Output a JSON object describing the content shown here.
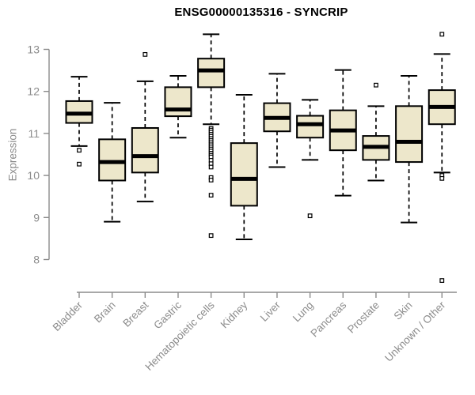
{
  "title": "ENSG00000135316 - SYNCRIP",
  "colors": {
    "box_fill": "#EDE7CB",
    "box_stroke": "#000000",
    "median": "#000000",
    "whisker": "#000000",
    "axis": "#8B8B8B",
    "tick_text": "#8C8C8C",
    "title_text": "#000000",
    "background": "#FFFFFF"
  },
  "chart_data": {
    "type": "boxplot",
    "title": "ENSG00000135316 - SYNCRIP",
    "xlabel": "",
    "ylabel": "Expression",
    "ylim": [
      8,
      13
    ],
    "yticks": [
      8,
      9,
      10,
      11,
      12,
      13
    ],
    "grid": false,
    "legend": false,
    "categories": [
      "Bladder",
      "Brain",
      "Breast",
      "Gastric",
      "Hematopoietic cells",
      "Kidney",
      "Liver",
      "Lung",
      "Pancreas",
      "Prostate",
      "Skin",
      "Unknown / Other"
    ],
    "series": [
      {
        "name": "Bladder",
        "whisker_low": 10.7,
        "q1": 11.25,
        "median": 11.47,
        "q3": 11.77,
        "whisker_high": 12.35,
        "outliers": [
          10.6,
          10.27
        ]
      },
      {
        "name": "Brain",
        "whisker_low": 8.9,
        "q1": 9.88,
        "median": 10.32,
        "q3": 10.86,
        "whisker_high": 11.73,
        "outliers": []
      },
      {
        "name": "Breast",
        "whisker_low": 9.38,
        "q1": 10.07,
        "median": 10.46,
        "q3": 11.13,
        "whisker_high": 12.24,
        "outliers": [
          12.88
        ]
      },
      {
        "name": "Gastric",
        "whisker_low": 10.9,
        "q1": 11.41,
        "median": 11.57,
        "q3": 12.1,
        "whisker_high": 12.37,
        "outliers": []
      },
      {
        "name": "Hematopoietic cells",
        "whisker_low": 11.22,
        "q1": 12.1,
        "median": 12.5,
        "q3": 12.78,
        "whisker_high": 13.36,
        "outliers": [
          11.12,
          11.08,
          11.03,
          10.98,
          10.93,
          10.88,
          10.83,
          10.78,
          10.73,
          10.68,
          10.63,
          10.58,
          10.53,
          10.48,
          10.44,
          10.36,
          10.28,
          10.2,
          9.95,
          9.89,
          9.53,
          8.57
        ]
      },
      {
        "name": "Kidney",
        "whisker_low": 8.48,
        "q1": 9.28,
        "median": 9.92,
        "q3": 10.77,
        "whisker_high": 11.92,
        "outliers": []
      },
      {
        "name": "Liver",
        "whisker_low": 10.2,
        "q1": 11.05,
        "median": 11.37,
        "q3": 11.72,
        "whisker_high": 12.42,
        "outliers": []
      },
      {
        "name": "Lung",
        "whisker_low": 10.37,
        "q1": 10.9,
        "median": 11.22,
        "q3": 11.42,
        "whisker_high": 11.8,
        "outliers": [
          9.04
        ]
      },
      {
        "name": "Pancreas",
        "whisker_low": 9.52,
        "q1": 10.6,
        "median": 11.07,
        "q3": 11.55,
        "whisker_high": 12.51,
        "outliers": []
      },
      {
        "name": "Prostate",
        "whisker_low": 9.88,
        "q1": 10.37,
        "median": 10.68,
        "q3": 10.94,
        "whisker_high": 11.65,
        "outliers": [
          12.15
        ]
      },
      {
        "name": "Skin",
        "whisker_low": 8.88,
        "q1": 10.32,
        "median": 10.8,
        "q3": 11.65,
        "whisker_high": 12.37,
        "outliers": []
      },
      {
        "name": "Unknown / Other",
        "whisker_low": 10.07,
        "q1": 11.22,
        "median": 11.63,
        "q3": 12.03,
        "whisker_high": 12.89,
        "outliers": [
          13.36,
          10.0,
          9.93,
          7.5
        ]
      }
    ]
  }
}
